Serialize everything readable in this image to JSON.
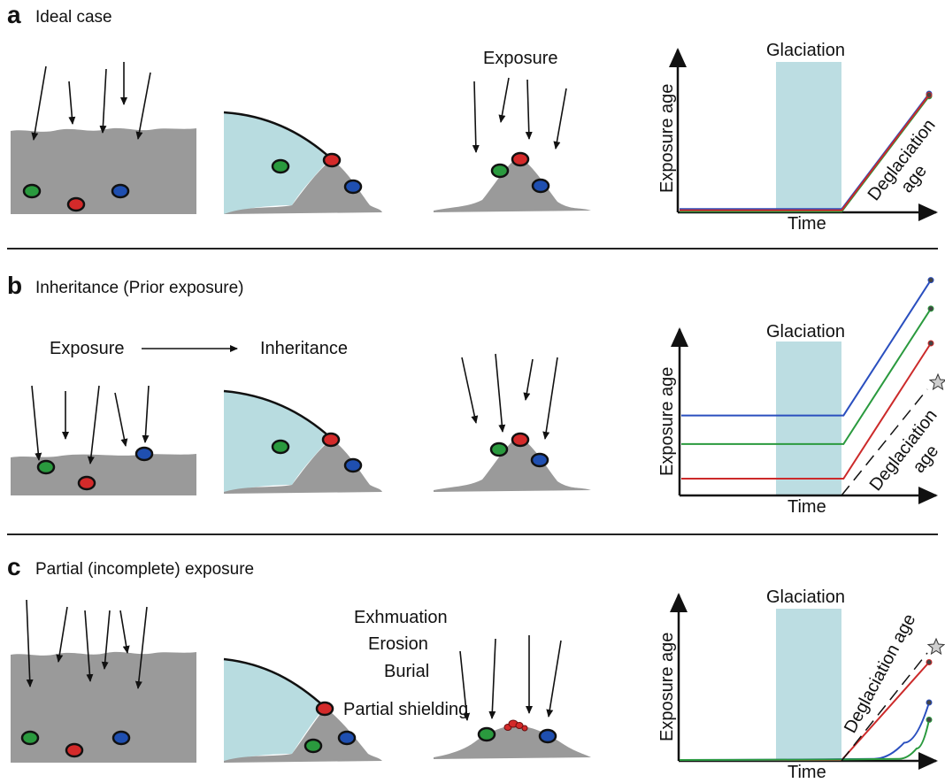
{
  "colors": {
    "rock": "#9a9a9a",
    "ice": "#b8dce0",
    "glaciation_band": "#bcdde2",
    "clast_green": "#2a9a3e",
    "clast_red": "#d42a2a",
    "clast_blue": "#1f4fb0",
    "line_blue": "#2a4fbf",
    "line_green": "#2a9a3e",
    "line_red": "#cc2a2a"
  },
  "panels": [
    {
      "letter": "a",
      "title": "Ideal case",
      "exposure_label": "Exposure",
      "chart": {
        "band_label": "Glaciation",
        "ylabel": "Exposure age",
        "xlabel": "Time",
        "annotation": "Deglaciation age"
      }
    },
    {
      "letter": "b",
      "title": "Inheritance (Prior exposure)",
      "process_from": "Exposure",
      "process_to": "Inheritance",
      "chart": {
        "band_label": "Glaciation",
        "ylabel": "Exposure age",
        "xlabel": "Time",
        "annotation": "Deglaciation age"
      }
    },
    {
      "letter": "c",
      "title": "Partial (incomplete) exposure",
      "process_labels": [
        "Exhmuation",
        "Erosion",
        "Burial"
      ],
      "shielding_label": "Partial shielding",
      "chart": {
        "band_label": "Glaciation",
        "ylabel": "Exposure age",
        "xlabel": "Time",
        "annotation": "Deglaciation age"
      }
    }
  ],
  "chart_data": [
    {
      "type": "line",
      "panel": "a",
      "ylabel": "Exposure age",
      "xlabel": "Time",
      "shaded_interval": "Glaciation",
      "series": [
        {
          "color": "blue",
          "path": "flat-then-rise",
          "x": [
            0,
            0.4,
            0.65,
            1.0
          ],
          "y": [
            0.02,
            0.02,
            0.02,
            0.95
          ]
        },
        {
          "color": "green",
          "path": "flat-then-rise",
          "x": [
            0,
            0.4,
            0.65,
            1.0
          ],
          "y": [
            0.0,
            0.0,
            0.0,
            0.93
          ]
        },
        {
          "color": "red",
          "path": "flat-then-rise",
          "x": [
            0,
            0.4,
            0.65,
            1.0
          ],
          "y": [
            0.01,
            0.01,
            0.01,
            0.94
          ]
        }
      ],
      "annotation": "Deglaciation age"
    },
    {
      "type": "line",
      "panel": "b",
      "ylabel": "Exposure age",
      "xlabel": "Time",
      "shaded_interval": "Glaciation",
      "series": [
        {
          "color": "blue",
          "x": [
            0,
            0.4,
            0.65,
            1.0
          ],
          "y": [
            0.52,
            0.52,
            0.52,
            1.42
          ]
        },
        {
          "color": "green",
          "x": [
            0,
            0.4,
            0.65,
            1.0
          ],
          "y": [
            0.33,
            0.33,
            0.33,
            1.23
          ]
        },
        {
          "color": "red",
          "x": [
            0,
            0.4,
            0.65,
            1.0
          ],
          "y": [
            0.1,
            0.1,
            0.1,
            1.0
          ]
        }
      ],
      "annotation": "Deglaciation age"
    },
    {
      "type": "line",
      "panel": "c",
      "ylabel": "Exposure age",
      "xlabel": "Time",
      "shaded_interval": "Glaciation",
      "series": [
        {
          "color": "red",
          "x": [
            0,
            0.65,
            1.0
          ],
          "y": [
            0,
            0,
            0.85
          ]
        },
        {
          "color": "blue",
          "x": [
            0,
            0.78,
            0.9,
            1.0
          ],
          "y": [
            0,
            0.01,
            0.15,
            0.5
          ]
        },
        {
          "color": "green",
          "x": [
            0,
            0.88,
            0.95,
            1.0
          ],
          "y": [
            0,
            0.01,
            0.1,
            0.35
          ]
        }
      ],
      "annotation": "Deglaciation age"
    }
  ]
}
